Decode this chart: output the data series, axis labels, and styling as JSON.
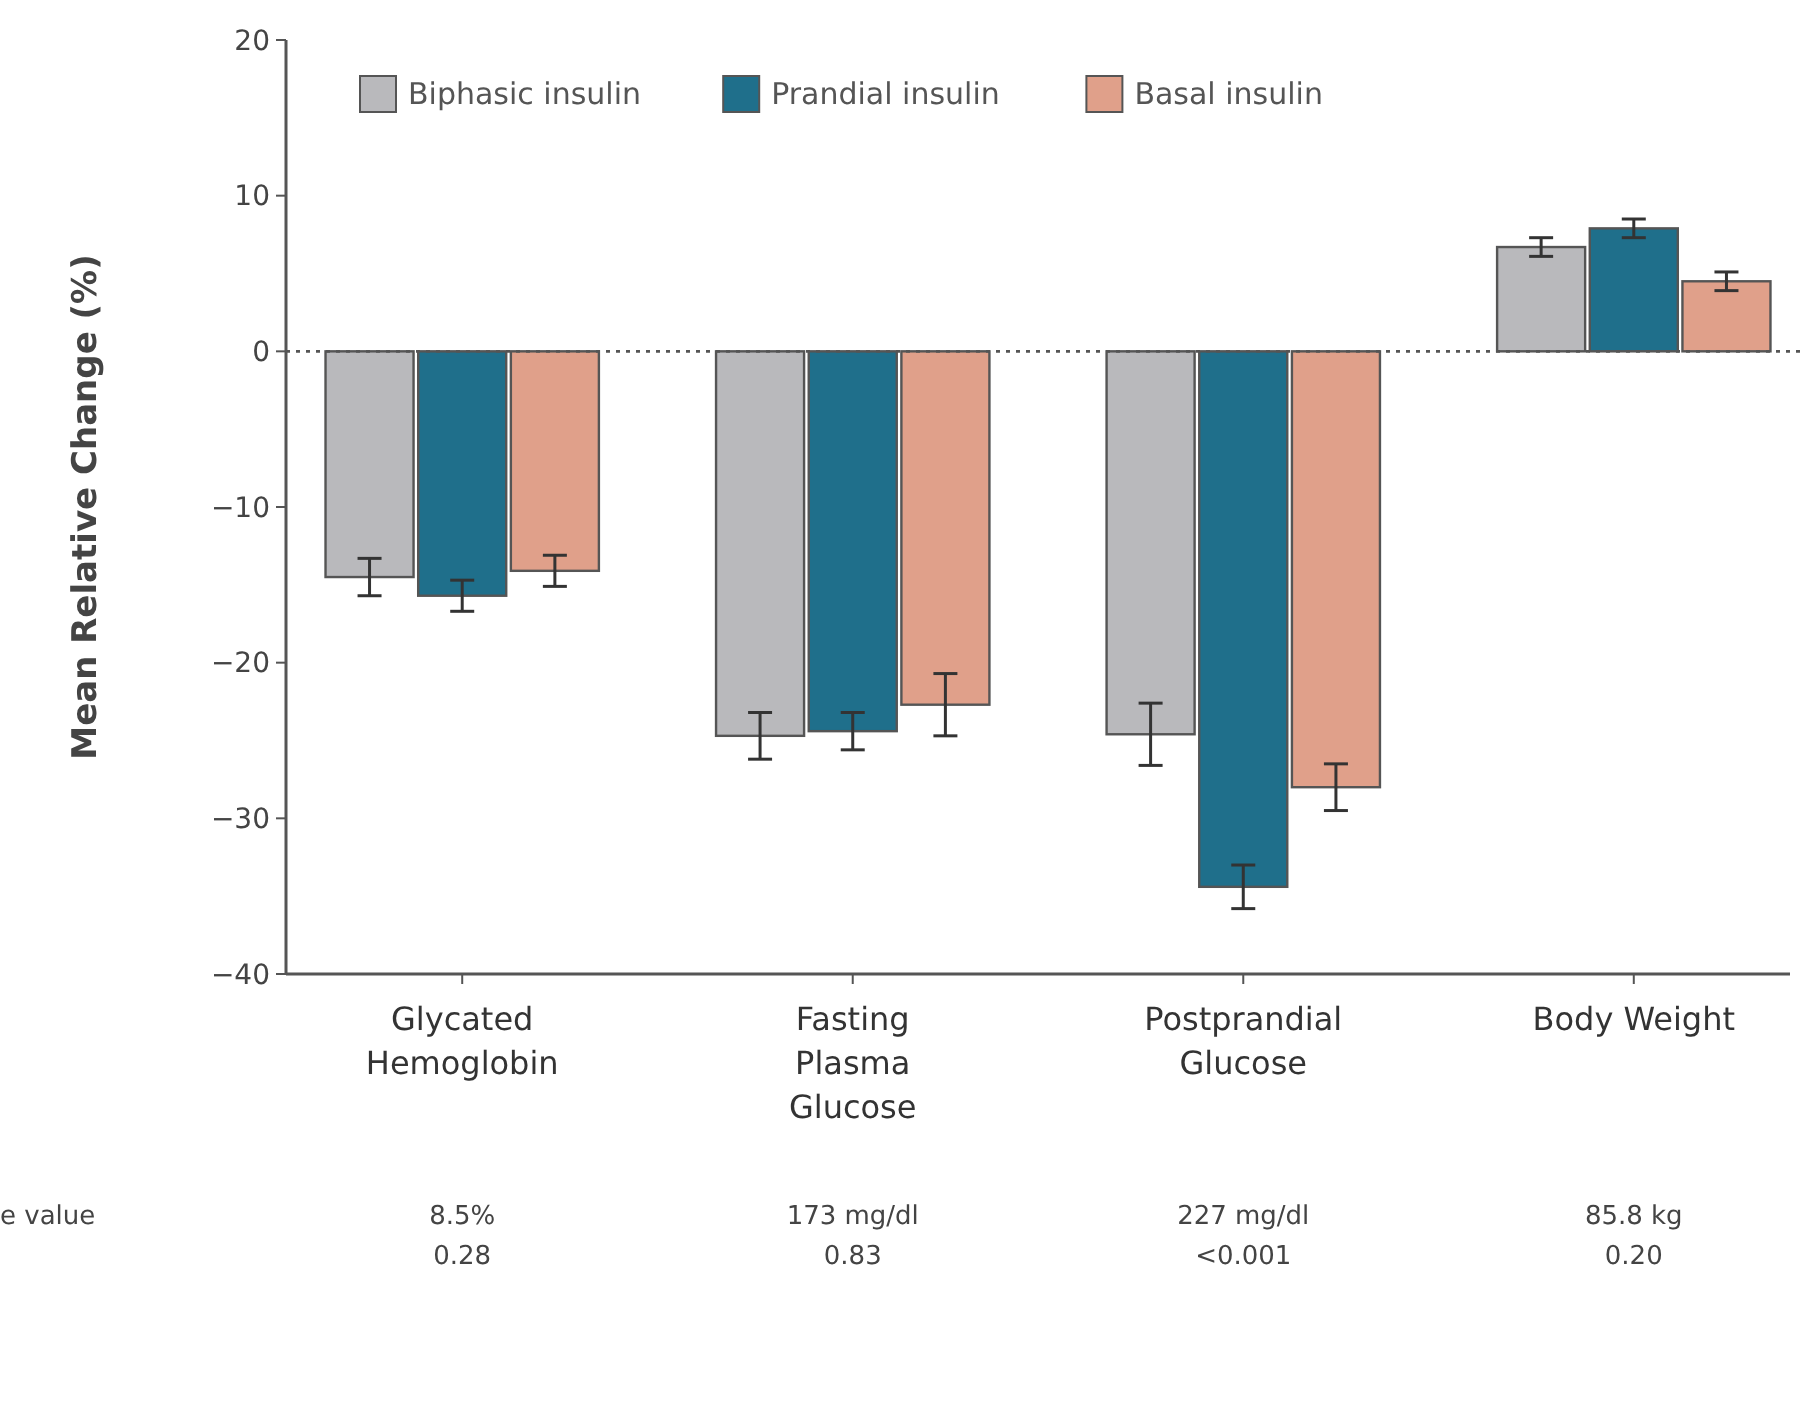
{
  "chart_data": {
    "type": "bar",
    "ylabel": "Mean Relative Change (%)",
    "categories": [
      "Glycated Hemoglobin",
      "Fasting Plasma Glucose",
      "Postprandial Glucose",
      "Body Weight"
    ],
    "series": [
      {
        "name": "Biphasic insulin",
        "color": "#b9b9bc",
        "values": [
          -14.5,
          -24.7,
          -24.6,
          6.7
        ],
        "errors": [
          1.2,
          1.5,
          2,
          0.6
        ]
      },
      {
        "name": "Prandial insulin",
        "color": "#1f6f8b",
        "values": [
          -15.7,
          -24.4,
          -34.4,
          7.9
        ],
        "errors": [
          1,
          1.2,
          1.4,
          0.6
        ]
      },
      {
        "name": "Basal insulin",
        "color": "#e0a08a",
        "values": [
          -14.1,
          -22.7,
          -28,
          4.5
        ],
        "errors": [
          1,
          2,
          1.5,
          0.6
        ]
      }
    ],
    "ylim": [
      -40,
      20
    ],
    "yticks": [
      -40,
      -30,
      -20,
      -10,
      0,
      10,
      20
    ],
    "grid": false,
    "legend": "top",
    "ref_lines": [
      {
        "axis": "y",
        "value": 0,
        "line_style": "dotted",
        "color": "#555555"
      }
    ],
    "annotations": [
      "e value",
      "8.5%",
      "173 mg/dl",
      "227 mg/dl",
      "85.8 kg",
      "0.28",
      "0.83",
      "<0.001",
      "0.20"
    ]
  }
}
